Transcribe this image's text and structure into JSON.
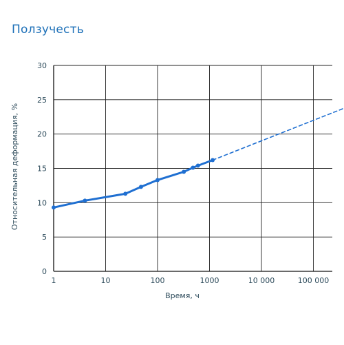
{
  "title": "Ползучесть",
  "colors": {
    "title": "#1d70b8",
    "series": "#1f6fd1",
    "axis_text": "#2c4a5a",
    "grid": "#222222"
  },
  "chart_data": {
    "type": "line",
    "title": "Ползучесть",
    "xlabel": "Время, ч",
    "ylabel": "Относительная деформация, %",
    "x_scale": "log",
    "xlim": [
      1,
      400000
    ],
    "ylim": [
      0,
      30
    ],
    "grid": true,
    "x_ticks": [
      1,
      10,
      100,
      1000,
      10000,
      100000
    ],
    "x_tick_labels": [
      "1",
      "10",
      "100",
      "1000",
      "10 000",
      "100 000"
    ],
    "y_ticks": [
      0,
      5,
      10,
      15,
      20,
      25,
      30
    ],
    "y_tick_labels": [
      "0",
      "5",
      "10",
      "15",
      "20",
      "25",
      "30"
    ],
    "series": [
      {
        "style": "solid-with-markers",
        "x": [
          1,
          4,
          24,
          48,
          100,
          320,
          480,
          600,
          1150
        ],
        "y": [
          9.3,
          10.3,
          11.3,
          12.3,
          13.3,
          14.5,
          15.1,
          15.4,
          16.2
        ]
      },
      {
        "style": "dashed-extrapolation",
        "x": [
          1150,
          400000
        ],
        "y": [
          16.2,
          23.8
        ]
      }
    ]
  }
}
